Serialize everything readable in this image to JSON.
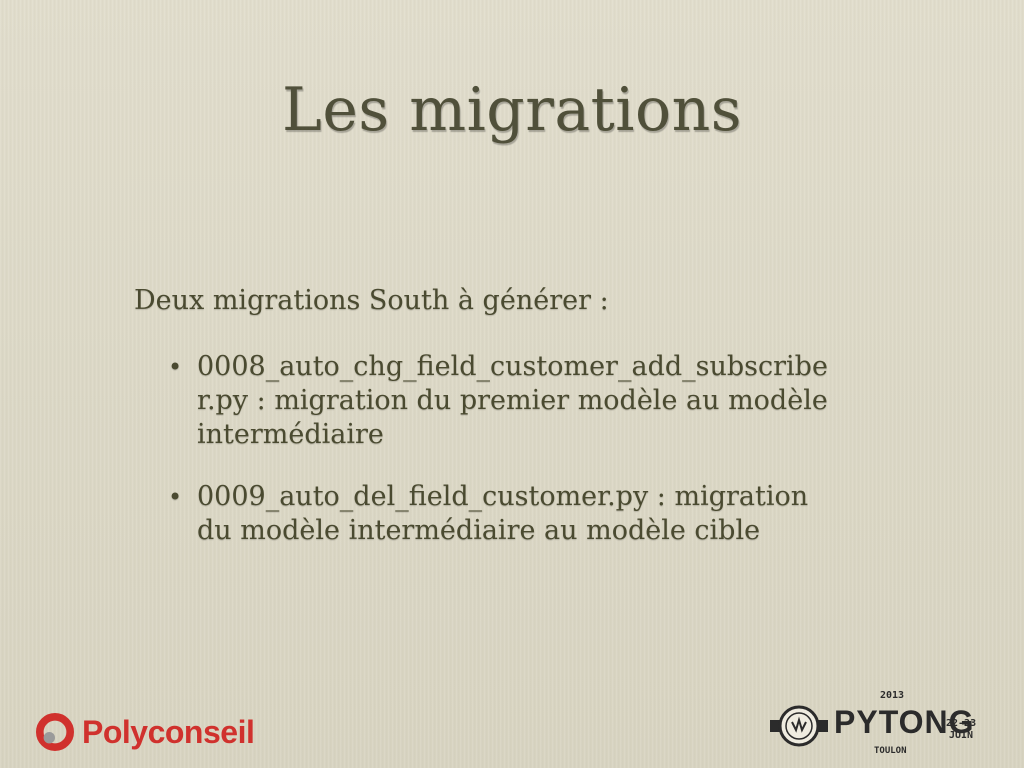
{
  "slide": {
    "title": "Les migrations",
    "intro": "Deux migrations South à générer :",
    "bullets": [
      {
        "marker": "•",
        "lines": [
          "0008_auto_chg_field_customer_add_subscribe",
          "r.py : migration du premier modèle au modèle",
          "intermédiaire"
        ]
      },
      {
        "marker": "•",
        "lines": [
          "0009_auto_del_field_customer.py : migration",
          "du modèle intermédiaire au modèle cible"
        ]
      }
    ]
  },
  "footer": {
    "polyconseil": {
      "name": "Polyconseil",
      "color": "#d0312d"
    },
    "pytong": {
      "name": "PYTONG",
      "year": "2013",
      "dates_line1": "22-23",
      "dates_line2": "JUIN",
      "city": "TOULON"
    }
  },
  "colors": {
    "background": "#dedbc9",
    "text": "#4a4a30"
  }
}
